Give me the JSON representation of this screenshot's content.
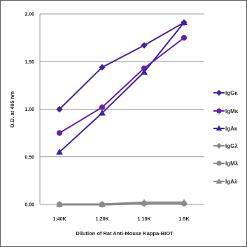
{
  "chart_data": {
    "type": "line",
    "title": "",
    "xlabel": "Dilution of Rat Anti-Mouse Kappa-BIOT",
    "ylabel": "O.D. at 405 nm",
    "categories": [
      "1:40K",
      "1:20K",
      "1:10K",
      "1:5K"
    ],
    "ylim": [
      0,
      2
    ],
    "yticks": [
      "0.00",
      "0.50",
      "1.00",
      "1.50",
      "2.00"
    ],
    "ytick_values": [
      0,
      0.5,
      1.0,
      1.5,
      2.0
    ],
    "grid": "horizontal",
    "legend_position": "right",
    "series": [
      {
        "name": "IgGκ",
        "values": [
          1.0,
          1.44,
          1.67,
          1.91
        ],
        "color": "#4b1f9a",
        "marker": "diamond"
      },
      {
        "name": "IgMκ",
        "values": [
          0.75,
          1.02,
          1.43,
          1.75
        ],
        "color": "#6a1fa8",
        "marker": "circle"
      },
      {
        "name": "IgAκ",
        "values": [
          0.55,
          0.96,
          1.39,
          1.91
        ],
        "color": "#3d22a8",
        "marker": "triangle"
      },
      {
        "name": "IgGλ",
        "values": [
          0.0,
          0.0,
          0.01,
          0.01
        ],
        "color": "#8a8a8a",
        "marker": "diamond"
      },
      {
        "name": "IgMλ",
        "values": [
          0.0,
          0.0,
          0.01,
          0.01
        ],
        "color": "#8a8a8a",
        "marker": "circle"
      },
      {
        "name": "IgAλ",
        "values": [
          0.0,
          0.0,
          0.02,
          0.02
        ],
        "color": "#8a8a8a",
        "marker": "triangle"
      }
    ]
  }
}
